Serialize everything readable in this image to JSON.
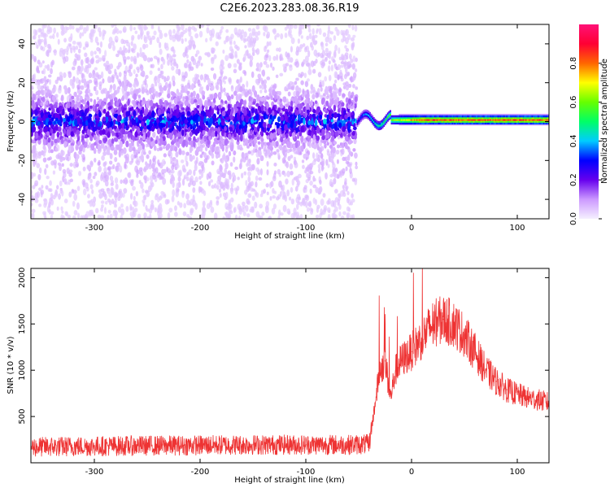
{
  "title": "C2E6.2023.283.08.36.R19",
  "chart_data": [
    {
      "type": "heatmap",
      "xlabel": "Height of straight line (km)",
      "ylabel": "Frequency (Hz)",
      "xlim": [
        -360,
        130
      ],
      "ylim": [
        -50,
        50
      ],
      "xticks": [
        -300,
        -200,
        -100,
        0,
        100
      ],
      "yticks": [
        -40,
        -20,
        0,
        20,
        40
      ],
      "colorbar": {
        "label": "Normalized spectral amplitude",
        "range": [
          0,
          1
        ],
        "ticks": [
          0.0,
          0.2,
          0.4,
          0.6,
          0.8
        ],
        "colormap": "rainbow",
        "stops": [
          "#f5f0ff",
          "#cc99ff",
          "#6600ee",
          "#0000ff",
          "#00ccff",
          "#00ff66",
          "#66ff00",
          "#ffff00",
          "#ff6600",
          "#ff0033",
          "#ff1177"
        ]
      },
      "regions": [
        {
          "x_range": [
            -360,
            -52
          ],
          "center_freq": 0,
          "core_halfwidth": 8,
          "wing_halfwidth": 50,
          "peak_amplitude": 0.35
        },
        {
          "x_range": [
            -52,
            130
          ],
          "center_freq": 1,
          "line_halfwidth": 2,
          "peak_amplitude": 0.9
        }
      ]
    },
    {
      "type": "line",
      "xlabel": "Height of straight line (km)",
      "ylabel": "SNR (10 * v/v)",
      "xlim": [
        -360,
        130
      ],
      "ylim": [
        0,
        2100
      ],
      "xticks": [
        -300,
        -200,
        -100,
        0,
        100
      ],
      "yticks": [
        500,
        1000,
        1500,
        2000
      ],
      "series": [
        {
          "color": "#ee3333",
          "x": [
            -360,
            -300,
            -250,
            -200,
            -150,
            -100,
            -60,
            -40,
            -35,
            -30,
            -25,
            -20,
            -15,
            -10,
            0,
            10,
            20,
            30,
            40,
            50,
            60,
            70,
            80,
            90,
            100,
            110,
            120,
            130
          ],
          "y": [
            170,
            180,
            185,
            190,
            195,
            195,
            195,
            200,
            600,
            1000,
            1100,
            700,
            1000,
            1100,
            1200,
            1350,
            1500,
            1550,
            1500,
            1380,
            1200,
            1000,
            880,
            790,
            740,
            700,
            680,
            650
          ]
        }
      ]
    }
  ]
}
